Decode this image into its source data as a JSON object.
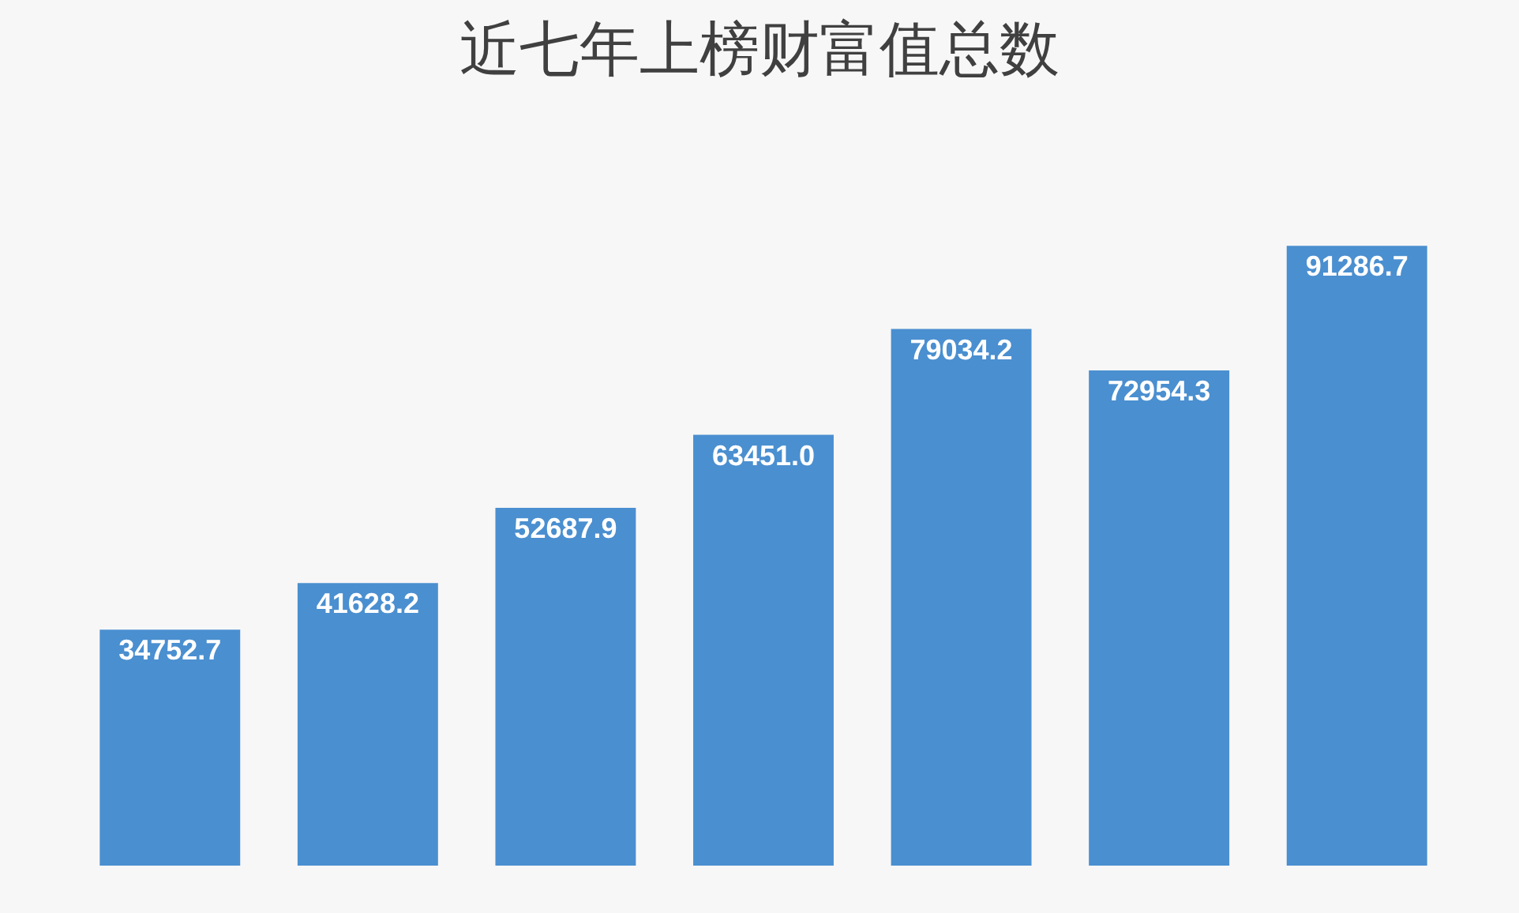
{
  "chart_data": {
    "type": "bar",
    "title": "近七年上榜财富值总数",
    "categories": [
      null,
      null,
      null,
      null,
      null,
      null,
      null
    ],
    "values": [
      34752.7,
      41628.2,
      52687.9,
      63451.0,
      79034.2,
      72954.3,
      91286.7
    ],
    "value_labels": [
      "34752.7",
      "41628.2",
      "52687.9",
      "63451.0",
      "79034.2",
      "72954.3",
      "91286.7"
    ],
    "color": "#4a8fd0"
  }
}
